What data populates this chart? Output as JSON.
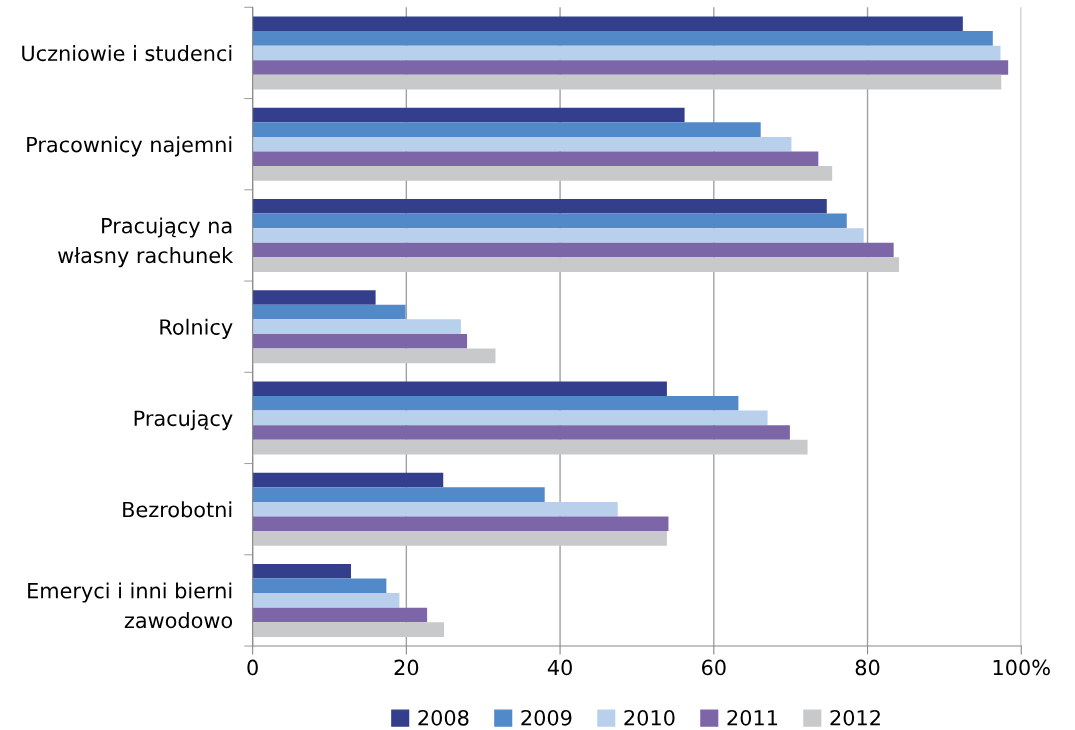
{
  "chart_data": {
    "type": "bar",
    "orientation": "horizontal",
    "categories": [
      "Uczniowie i studenci",
      "Pracownicy najemni",
      "Pracujący na\nwłasny rachunek",
      "Rolnicy",
      "Pracujący",
      "Bezrobotni",
      "Emeryci i inni bierni\nzawodowo"
    ],
    "series": [
      {
        "name": "2008",
        "color": "#333f8c",
        "values": [
          92.4,
          56.2,
          74.7,
          16.0,
          53.9,
          24.8,
          12.8
        ]
      },
      {
        "name": "2009",
        "color": "#5289c9",
        "values": [
          96.3,
          66.1,
          77.3,
          19.9,
          63.2,
          38.0,
          17.4
        ]
      },
      {
        "name": "2010",
        "color": "#b9d0ec",
        "values": [
          97.3,
          70.1,
          79.5,
          27.1,
          67.0,
          47.5,
          19.1
        ]
      },
      {
        "name": "2011",
        "color": "#7d66a8",
        "values": [
          98.3,
          73.6,
          83.4,
          27.9,
          69.9,
          54.1,
          22.7
        ]
      },
      {
        "name": "2012",
        "color": "#c8c9cb",
        "values": [
          97.4,
          75.4,
          84.1,
          31.6,
          72.2,
          53.9,
          24.9
        ]
      }
    ],
    "xlim": [
      0,
      100
    ],
    "xticks": [
      0,
      20,
      40,
      60,
      80,
      {
        "value": 100,
        "label": "100%"
      }
    ],
    "grid": "x",
    "legend": "bottom"
  }
}
